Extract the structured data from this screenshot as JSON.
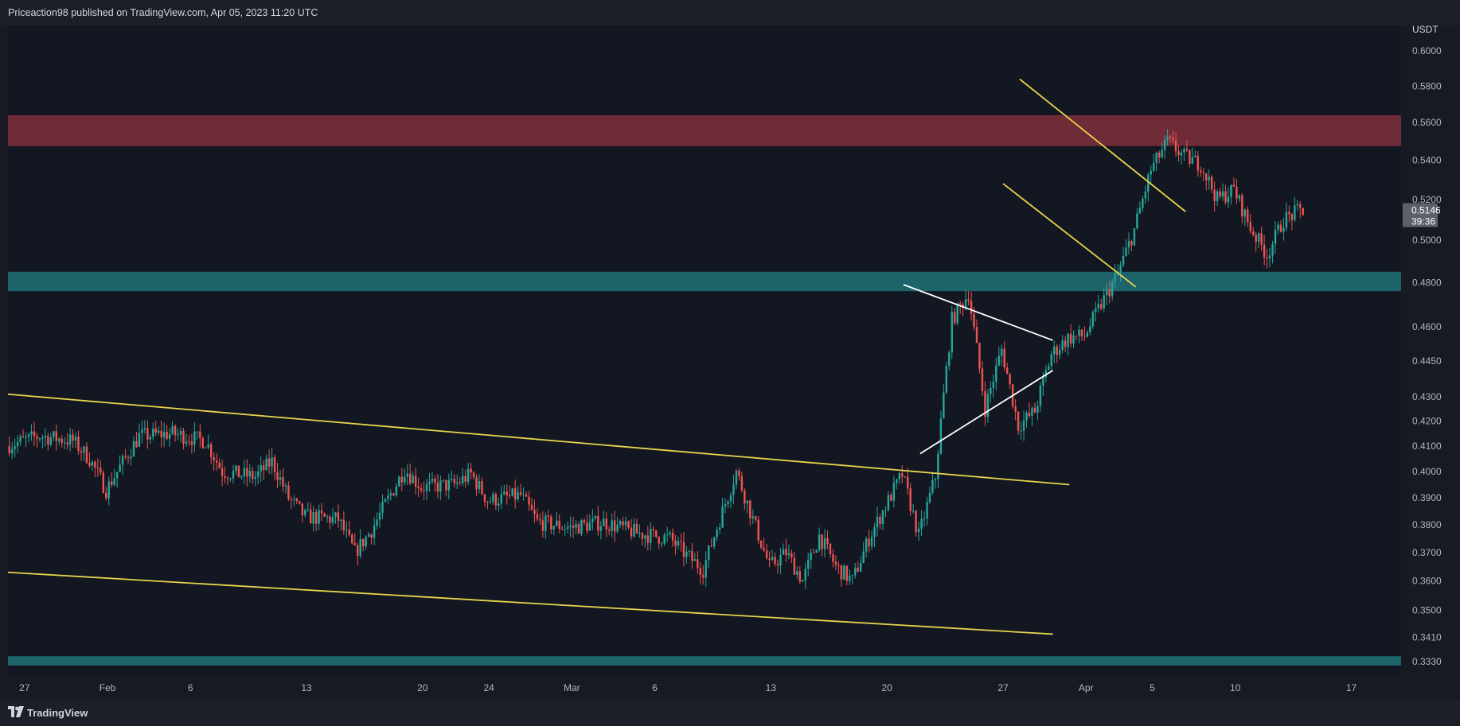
{
  "header": {
    "published_text": "Priceaction98 published on TradingView.com, Apr 05, 2023 11:20 UTC"
  },
  "footer": {
    "brand": "TradingView",
    "logo_icon": "tradingview-logo-icon"
  },
  "colors": {
    "background": "#131722",
    "up_candle": "#26a69a",
    "down_candle": "#ef5350",
    "channel_line": "#e8d44d",
    "triangle_line": "#ffffff",
    "resistance_zone": "#7a2e3a",
    "support_zone": "#1f6b72",
    "price_tag": "#5d606b"
  },
  "chart_data": {
    "type": "candlestick",
    "symbol_quote": "USDT",
    "y_axis": {
      "unit_label": "USDT",
      "scale": "log",
      "ylim": [
        0.329,
        0.615
      ],
      "tick_labels": [
        "0.6000",
        "0.5800",
        "0.5600",
        "0.5400",
        "0.5200",
        "0.5000",
        "0.4800",
        "0.4600",
        "0.4450",
        "0.4300",
        "0.4200",
        "0.4100",
        "0.4000",
        "0.3900",
        "0.3800",
        "0.3700",
        "0.3600",
        "0.3500",
        "0.3410",
        "0.3330"
      ]
    },
    "x_axis": {
      "ticks": [
        {
          "label": "27",
          "date": "2023-01-27"
        },
        {
          "label": "Feb",
          "date": "2023-02-01"
        },
        {
          "label": "6",
          "date": "2023-02-06"
        },
        {
          "label": "13",
          "date": "2023-02-13"
        },
        {
          "label": "20",
          "date": "2023-02-20"
        },
        {
          "label": "24",
          "date": "2023-02-24"
        },
        {
          "label": "Mar",
          "date": "2023-03-01"
        },
        {
          "label": "6",
          "date": "2023-03-06"
        },
        {
          "label": "13",
          "date": "2023-03-13"
        },
        {
          "label": "20",
          "date": "2023-03-20"
        },
        {
          "label": "27",
          "date": "2023-03-27"
        },
        {
          "label": "Apr",
          "date": "2023-04-01"
        },
        {
          "label": "5",
          "date": "2023-04-05"
        },
        {
          "label": "10",
          "date": "2023-04-10"
        },
        {
          "label": "17",
          "date": "2023-04-17"
        }
      ],
      "range": [
        "2023-01-26",
        "2023-04-20"
      ]
    },
    "last_price": {
      "price": "0.5146",
      "countdown": "39:36"
    },
    "zones": [
      {
        "kind": "resistance",
        "low": 0.5475,
        "high": 0.564,
        "color": "#7a2e3a"
      },
      {
        "kind": "support",
        "low": 0.476,
        "high": 0.485,
        "color": "#1f6b72"
      },
      {
        "kind": "support",
        "low": 0.3318,
        "high": 0.3348,
        "color": "#1f6b72"
      }
    ],
    "trendlines": [
      {
        "name": "channel-upper",
        "color": "#e8d44d",
        "from": {
          "date": "2023-01-26",
          "price": 0.431
        },
        "to": {
          "date": "2023-03-31",
          "price": 0.395
        }
      },
      {
        "name": "channel-lower",
        "color": "#e8d44d",
        "from": {
          "date": "2023-01-26",
          "price": 0.363
        },
        "to": {
          "date": "2023-03-30",
          "price": 0.342
        }
      },
      {
        "name": "triangle-upper",
        "color": "#ffffff",
        "from": {
          "date": "2023-03-21",
          "price": 0.479
        },
        "to": {
          "date": "2023-03-30",
          "price": 0.454
        }
      },
      {
        "name": "triangle-lower",
        "color": "#ffffff",
        "from": {
          "date": "2023-03-22",
          "price": 0.407
        },
        "to": {
          "date": "2023-03-30",
          "price": 0.441
        }
      },
      {
        "name": "flag-upper",
        "color": "#e8d44d",
        "from": {
          "date": "2023-03-28",
          "price": 0.584
        },
        "to": {
          "date": "2023-04-07",
          "price": 0.514
        }
      },
      {
        "name": "flag-lower",
        "color": "#e8d44d",
        "from": {
          "date": "2023-03-27",
          "price": 0.528
        },
        "to": {
          "date": "2023-04-04",
          "price": 0.478
        }
      }
    ],
    "bar_hours": 4,
    "candles_start": "2023-01-26",
    "anchors": [
      [
        "2023-01-26",
        0.41
      ],
      [
        "2023-01-28",
        0.414
      ],
      [
        "2023-01-30",
        0.412
      ],
      [
        "2023-01-31",
        0.405
      ],
      [
        "2023-02-01",
        0.393
      ],
      [
        "2023-02-03",
        0.414
      ],
      [
        "2023-02-05",
        0.415
      ],
      [
        "2023-02-07",
        0.412
      ],
      [
        "2023-02-08",
        0.4
      ],
      [
        "2023-02-10",
        0.398
      ],
      [
        "2023-02-11",
        0.404
      ],
      [
        "2023-02-12",
        0.39
      ],
      [
        "2023-02-13",
        0.383
      ],
      [
        "2023-02-15",
        0.382
      ],
      [
        "2023-02-16",
        0.37
      ],
      [
        "2023-02-17",
        0.378
      ],
      [
        "2023-02-19",
        0.401
      ],
      [
        "2023-02-20",
        0.394
      ],
      [
        "2023-02-22",
        0.395
      ],
      [
        "2023-02-23",
        0.399
      ],
      [
        "2023-02-24",
        0.389
      ],
      [
        "2023-02-26",
        0.391
      ],
      [
        "2023-02-27",
        0.381
      ],
      [
        "2023-03-01",
        0.379
      ],
      [
        "2023-03-03",
        0.381
      ],
      [
        "2023-03-05",
        0.377
      ],
      [
        "2023-03-06",
        0.376
      ],
      [
        "2023-03-07",
        0.375
      ],
      [
        "2023-03-08",
        0.369
      ],
      [
        "2023-03-09",
        0.364
      ],
      [
        "2023-03-10",
        0.382
      ],
      [
        "2023-03-11",
        0.4
      ],
      [
        "2023-03-12",
        0.382
      ],
      [
        "2023-03-13",
        0.365
      ],
      [
        "2023-03-14",
        0.37
      ],
      [
        "2023-03-15",
        0.36
      ],
      [
        "2023-03-16",
        0.376
      ],
      [
        "2023-03-17",
        0.365
      ],
      [
        "2023-03-18",
        0.36
      ],
      [
        "2023-03-19",
        0.375
      ],
      [
        "2023-03-20",
        0.387
      ],
      [
        "2023-03-21",
        0.399
      ],
      [
        "2023-03-22",
        0.376
      ],
      [
        "2023-03-23",
        0.398
      ],
      [
        "2023-03-24",
        0.463
      ],
      [
        "2023-03-25",
        0.475
      ],
      [
        "2023-03-26",
        0.425
      ],
      [
        "2023-03-27",
        0.45
      ],
      [
        "2023-03-28",
        0.418
      ],
      [
        "2023-03-29",
        0.424
      ],
      [
        "2023-03-30",
        0.448
      ],
      [
        "2023-03-31",
        0.455
      ],
      [
        "2023-04-01",
        0.456
      ],
      [
        "2023-04-02",
        0.47
      ],
      [
        "2023-04-03",
        0.484
      ],
      [
        "2023-04-04",
        0.505
      ],
      [
        "2023-04-05",
        0.535
      ],
      [
        "2023-04-06",
        0.55
      ],
      [
        "2023-04-07",
        0.542
      ],
      [
        "2023-04-08",
        0.538
      ],
      [
        "2023-04-09",
        0.52
      ],
      [
        "2023-04-10",
        0.525
      ],
      [
        "2023-04-11",
        0.506
      ],
      [
        "2023-04-12",
        0.493
      ],
      [
        "2023-04-13",
        0.51
      ],
      [
        "2023-04-14",
        0.5146
      ]
    ]
  }
}
